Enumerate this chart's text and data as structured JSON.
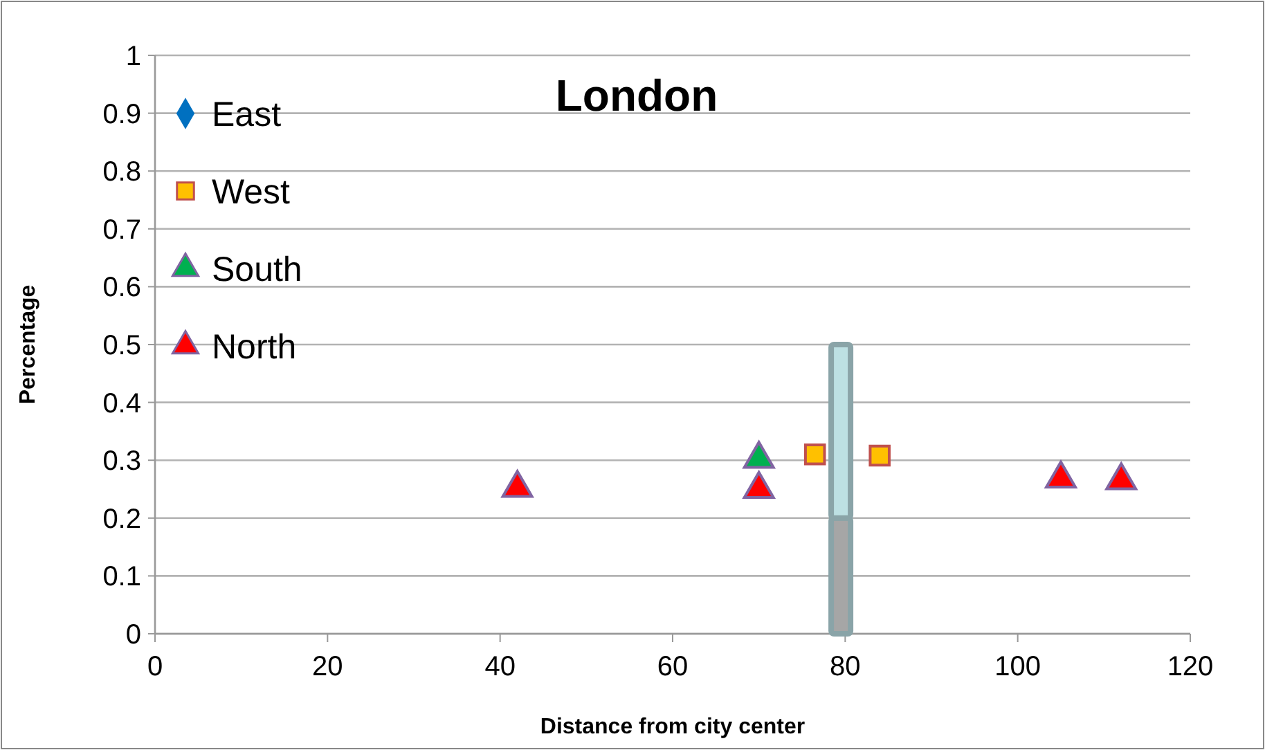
{
  "chart_data": {
    "type": "scatter",
    "title": "London",
    "xlabel": "Distance from city center",
    "ylabel": "Percentage",
    "xlim": [
      0,
      120
    ],
    "xticks": [
      0,
      20,
      40,
      60,
      80,
      100,
      120
    ],
    "ylim": [
      0,
      1
    ],
    "yticks": [
      0,
      0.1,
      0.2,
      0.3,
      0.4,
      0.5,
      0.6,
      0.7,
      0.8,
      0.9,
      1
    ],
    "grid": "y",
    "legend": "top left",
    "stacked": true,
    "series": [
      {
        "type": "bar",
        "color": "#a6a6a6",
        "x": [
          79.5
        ],
        "values": [
          0.2
        ]
      },
      {
        "type": "bar",
        "color": "#bde0e3",
        "x": [
          79.5
        ],
        "values": [
          0.3
        ]
      },
      {
        "name": "East",
        "color": "#0070c0",
        "marker": "diamond"
      },
      {
        "name": "West",
        "color": "#ffc000",
        "marker": "square",
        "x": [
          76.5,
          84
        ],
        "values": [
          0.31,
          0.308
        ]
      },
      {
        "name": "South",
        "color": "#00b050",
        "marker": "triangle",
        "x": [
          70
        ],
        "values": [
          0.302
        ]
      },
      {
        "name": "North",
        "color": "#ff0000",
        "marker": "triangle",
        "x": [
          42,
          70,
          105,
          112
        ],
        "values": [
          0.252,
          0.25,
          0.268,
          0.265
        ]
      }
    ]
  }
}
